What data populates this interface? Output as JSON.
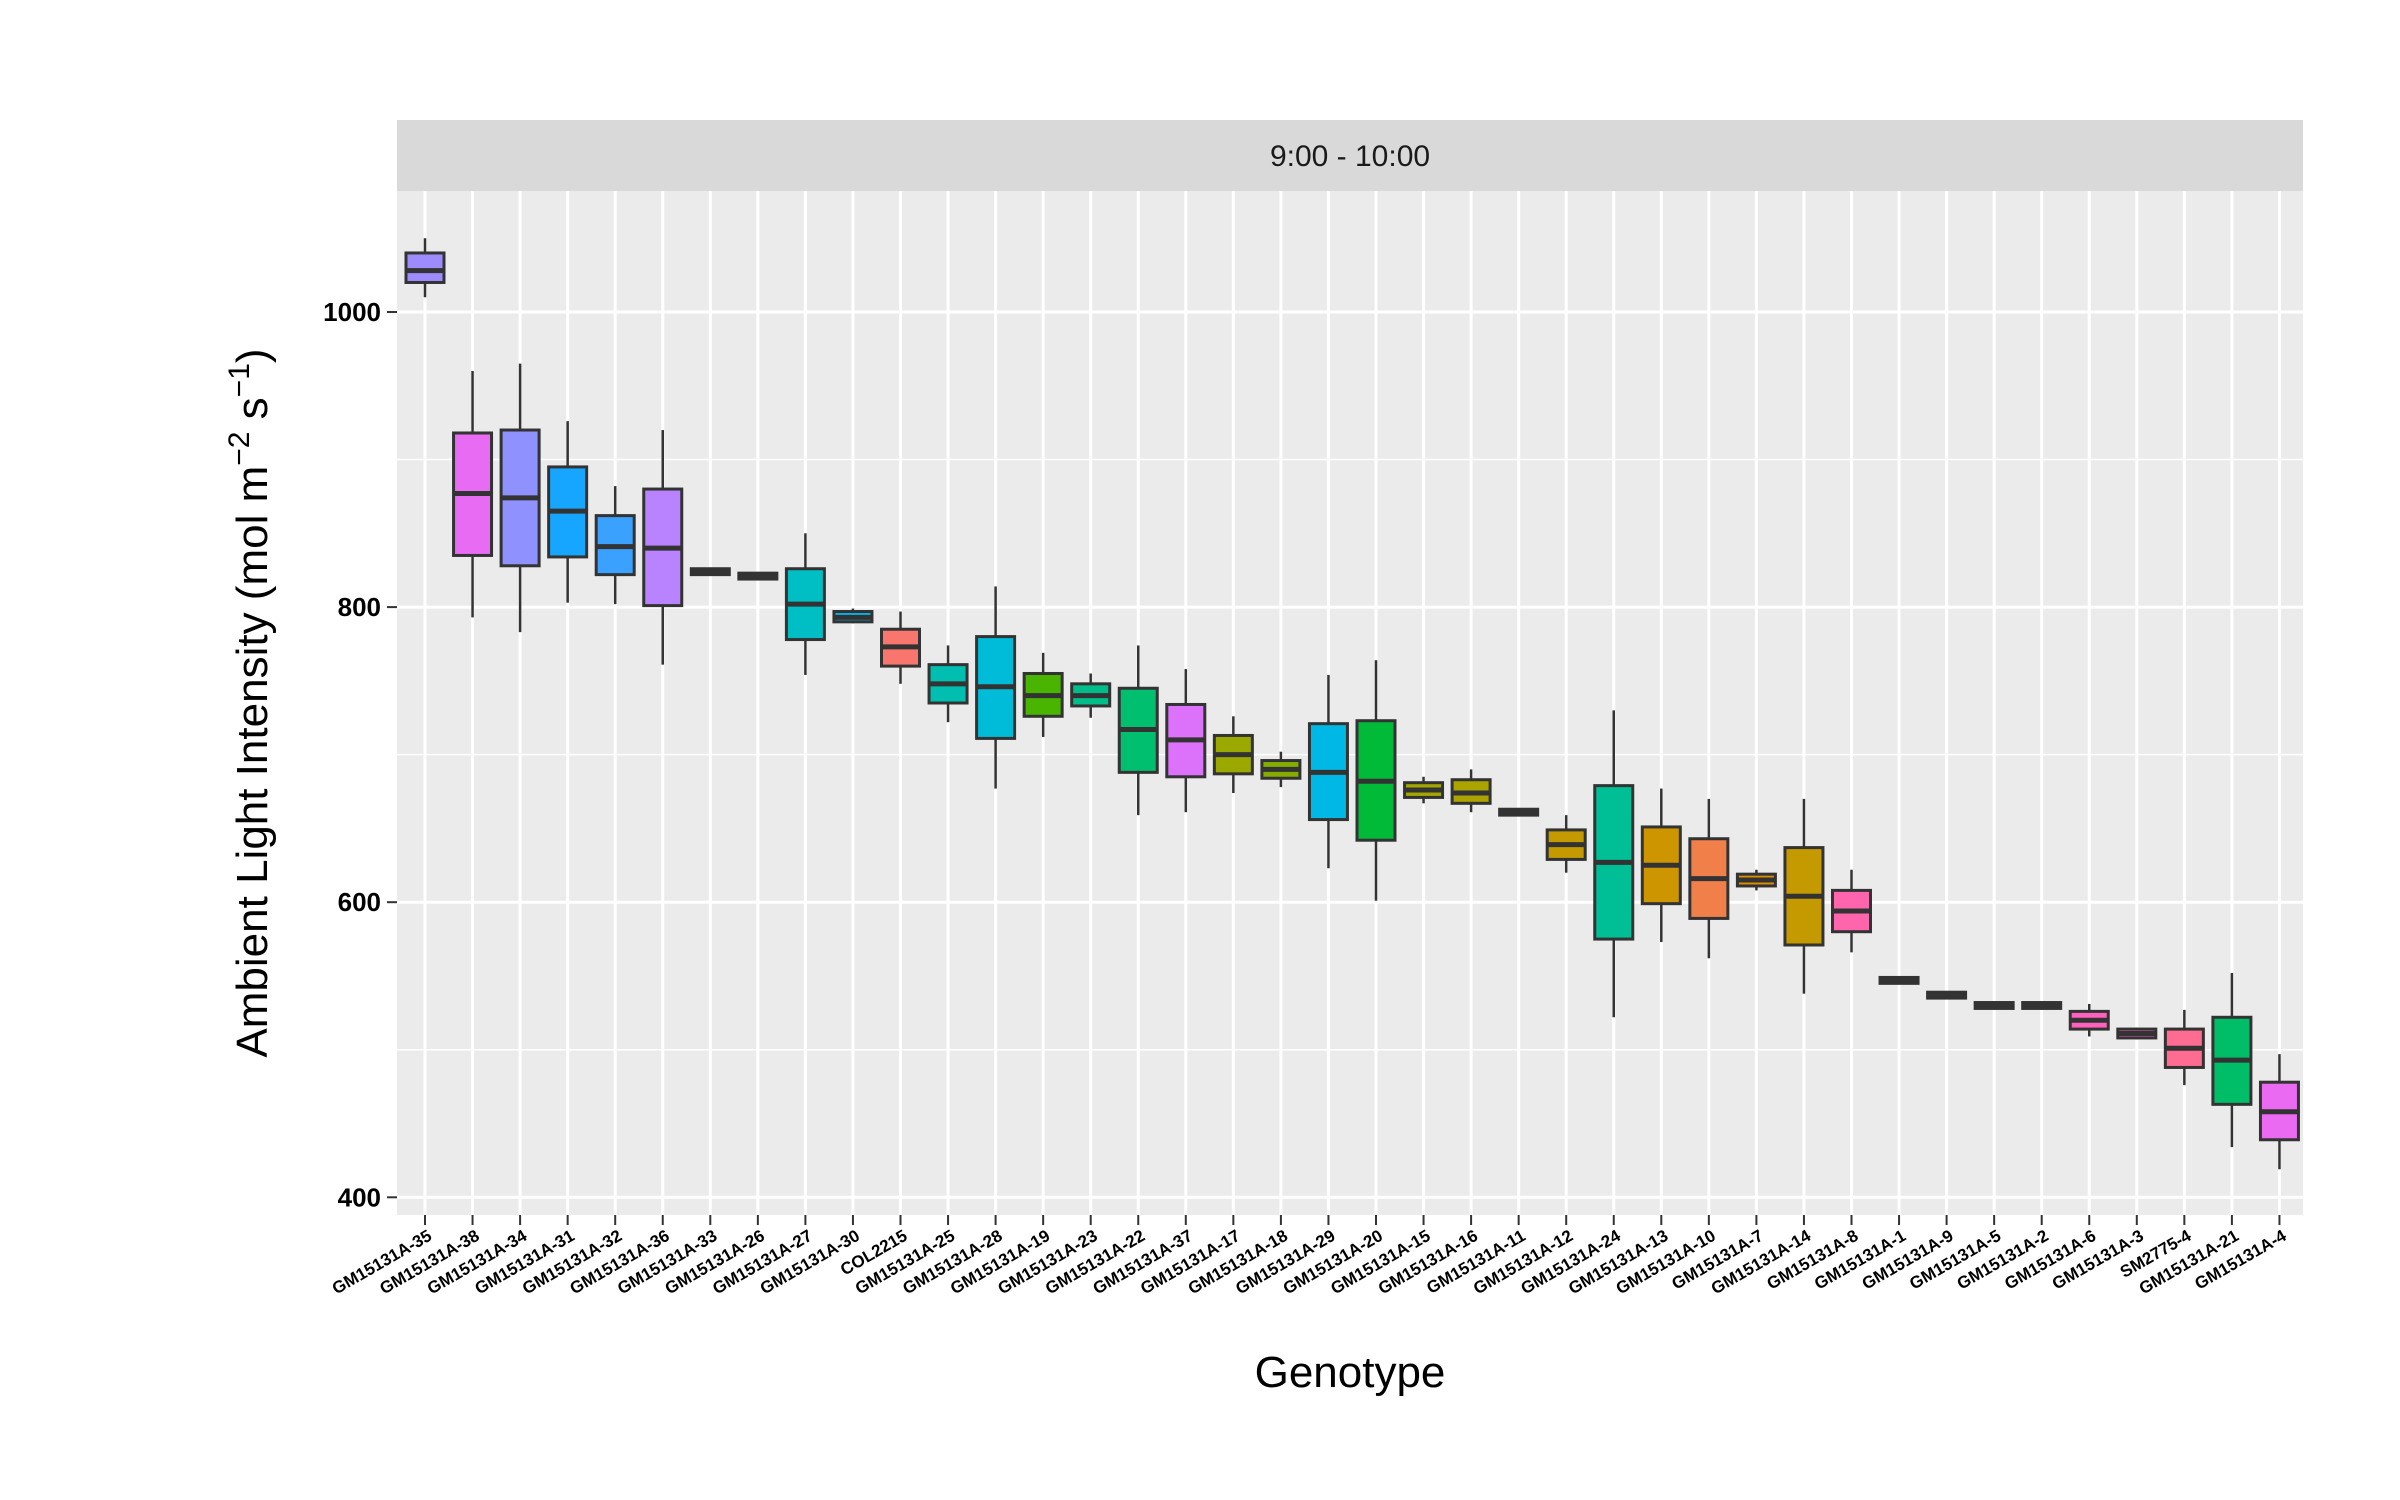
{
  "chart_data": {
    "type": "boxplot",
    "facet_label": "9:00 - 10:00",
    "xlabel": "Genotype",
    "ylabel": "Ambient Light Intensity (mol m^-2 s^-1)",
    "ylabel_parts": {
      "main": "Ambient Light Intensity (mol m",
      "exp1": "−2",
      "mid": " s",
      "exp2": "−1",
      "end": ")"
    },
    "ylim": [
      388,
      1082
    ],
    "yticks": [
      400,
      600,
      800,
      1000
    ],
    "grid": true,
    "categories": [
      "GM15131A-35",
      "GM15131A-38",
      "GM15131A-34",
      "GM15131A-31",
      "GM15131A-32",
      "GM15131A-36",
      "GM15131A-33",
      "GM15131A-26",
      "GM15131A-27",
      "GM15131A-30",
      "COL2215",
      "GM15131A-25",
      "GM15131A-28",
      "GM15131A-19",
      "GM15131A-23",
      "GM15131A-22",
      "GM15131A-37",
      "GM15131A-17",
      "GM15131A-18",
      "GM15131A-29",
      "GM15131A-20",
      "GM15131A-15",
      "GM15131A-16",
      "GM15131A-11",
      "GM15131A-12",
      "GM15131A-24",
      "GM15131A-13",
      "GM15131A-10",
      "GM15131A-7",
      "GM15131A-14",
      "GM15131A-8",
      "GM15131A-1",
      "GM15131A-9",
      "GM15131A-5",
      "GM15131A-2",
      "GM15131A-6",
      "GM15131A-3",
      "SM2775-4",
      "GM15131A-21",
      "GM15131A-4"
    ],
    "boxes": [
      {
        "min": 1010,
        "q1": 1020,
        "median": 1028,
        "q3": 1040,
        "max": 1050,
        "color": "#9E8CFF"
      },
      {
        "min": 793,
        "q1": 835,
        "median": 877,
        "q3": 918,
        "max": 960,
        "color": "#E86BF3"
      },
      {
        "min": 783,
        "q1": 828,
        "median": 874,
        "q3": 920,
        "max": 965,
        "color": "#8F91FF"
      },
      {
        "min": 803,
        "q1": 834,
        "median": 865,
        "q3": 895,
        "max": 926,
        "color": "#16A6FF"
      },
      {
        "min": 802,
        "q1": 822,
        "median": 841,
        "q3": 862,
        "max": 882,
        "color": "#3AA1FF"
      },
      {
        "min": 761,
        "q1": 801,
        "median": 840,
        "q3": 880,
        "max": 920,
        "color": "#B982FF"
      },
      {
        "min": 822,
        "q1": 822,
        "median": 824,
        "q3": 826,
        "max": 826,
        "color": "#7B93FF"
      },
      {
        "min": 819,
        "q1": 819,
        "median": 821,
        "q3": 823,
        "max": 823,
        "color": "#4C9BFF"
      },
      {
        "min": 754,
        "q1": 778,
        "median": 802,
        "q3": 826,
        "max": 850,
        "color": "#00BFC4"
      },
      {
        "min": 789,
        "q1": 790,
        "median": 793,
        "q3": 797,
        "max": 799,
        "color": "#00B4EF"
      },
      {
        "min": 748,
        "q1": 760,
        "median": 773,
        "q3": 785,
        "max": 797,
        "color": "#F8766D"
      },
      {
        "min": 722,
        "q1": 735,
        "median": 748,
        "q3": 761,
        "max": 774,
        "color": "#00BFB0"
      },
      {
        "min": 677,
        "q1": 711,
        "median": 746,
        "q3": 780,
        "max": 814,
        "color": "#00BCD8"
      },
      {
        "min": 712,
        "q1": 726,
        "median": 740,
        "q3": 755,
        "max": 769,
        "color": "#49B500"
      },
      {
        "min": 725,
        "q1": 733,
        "median": 740,
        "q3": 748,
        "max": 755,
        "color": "#00BE8A"
      },
      {
        "min": 659,
        "q1": 688,
        "median": 717,
        "q3": 745,
        "max": 774,
        "color": "#00BF6F"
      },
      {
        "min": 661,
        "q1": 685,
        "median": 710,
        "q3": 734,
        "max": 758,
        "color": "#DC71FA"
      },
      {
        "min": 674,
        "q1": 687,
        "median": 700,
        "q3": 713,
        "max": 726,
        "color": "#9BA800"
      },
      {
        "min": 678,
        "q1": 684,
        "median": 690,
        "q3": 696,
        "max": 702,
        "color": "#85AD00"
      },
      {
        "min": 623,
        "q1": 656,
        "median": 688,
        "q3": 721,
        "max": 754,
        "color": "#00B8E5"
      },
      {
        "min": 601,
        "q1": 642,
        "median": 682,
        "q3": 723,
        "max": 764,
        "color": "#00BA38"
      },
      {
        "min": 667,
        "q1": 671,
        "median": 676,
        "q3": 681,
        "max": 685,
        "color": "#A3A500"
      },
      {
        "min": 661,
        "q1": 667,
        "median": 674,
        "q3": 683,
        "max": 690,
        "color": "#ABA300"
      },
      {
        "min": 659,
        "q1": 659,
        "median": 661,
        "q3": 663,
        "max": 663,
        "color": "#B39F00"
      },
      {
        "min": 620,
        "q1": 629,
        "median": 639,
        "q3": 649,
        "max": 659,
        "color": "#C49A00"
      },
      {
        "min": 522,
        "q1": 575,
        "median": 627,
        "q3": 679,
        "max": 730,
        "color": "#00BF96"
      },
      {
        "min": 573,
        "q1": 599,
        "median": 625,
        "q3": 651,
        "max": 677,
        "color": "#CD9600"
      },
      {
        "min": 562,
        "q1": 589,
        "median": 616,
        "q3": 643,
        "max": 670,
        "color": "#F07F49"
      },
      {
        "min": 608,
        "q1": 611,
        "median": 615,
        "q3": 619,
        "max": 622,
        "color": "#DB8E00"
      },
      {
        "min": 538,
        "q1": 571,
        "median": 604,
        "q3": 637,
        "max": 670,
        "color": "#C59900"
      },
      {
        "min": 566,
        "q1": 580,
        "median": 594,
        "q3": 608,
        "max": 622,
        "color": "#FF65AC"
      },
      {
        "min": 545,
        "q1": 545,
        "median": 547,
        "q3": 549,
        "max": 549,
        "color": "#F8766D"
      },
      {
        "min": 535,
        "q1": 535,
        "median": 537,
        "q3": 539,
        "max": 539,
        "color": "#E88526"
      },
      {
        "min": 528,
        "q1": 528,
        "median": 530,
        "q3": 532,
        "max": 532,
        "color": "#D39200"
      },
      {
        "min": 528,
        "q1": 528,
        "median": 530,
        "q3": 532,
        "max": 532,
        "color": "#E7861B"
      },
      {
        "min": 509,
        "q1": 514,
        "median": 520,
        "q3": 526,
        "max": 531,
        "color": "#FF62BC"
      },
      {
        "min": 507,
        "q1": 508,
        "median": 511,
        "q3": 514,
        "max": 515,
        "color": "#FB61D7"
      },
      {
        "min": 476,
        "q1": 488,
        "median": 501,
        "q3": 514,
        "max": 527,
        "color": "#FF6C91"
      },
      {
        "min": 434,
        "q1": 463,
        "median": 493,
        "q3": 522,
        "max": 552,
        "color": "#00BE67"
      },
      {
        "min": 419,
        "q1": 439,
        "median": 458,
        "q3": 478,
        "max": 497,
        "color": "#EA6AF1"
      }
    ]
  }
}
